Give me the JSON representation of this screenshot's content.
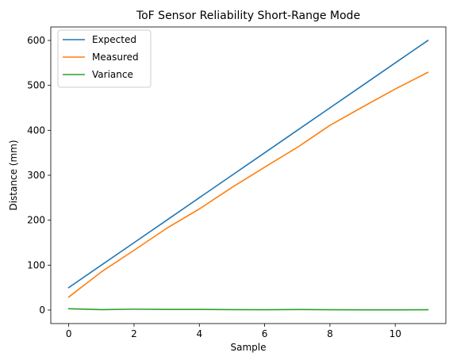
{
  "chart_data": {
    "type": "line",
    "title": "ToF Sensor Reliability Short-Range Mode",
    "xlabel": "Sample",
    "ylabel": "Distance (mm)",
    "x": [
      0,
      1,
      2,
      3,
      4,
      5,
      6,
      7,
      8,
      9,
      10,
      11
    ],
    "xlim": [
      -0.55,
      11.55
    ],
    "ylim": [
      -30,
      630
    ],
    "xticks": [
      0,
      2,
      4,
      6,
      8,
      10
    ],
    "yticks": [
      0,
      100,
      200,
      300,
      400,
      500,
      600
    ],
    "grid": false,
    "legend_position": "upper-left",
    "series": [
      {
        "name": "Expected",
        "color": "#1f77b4",
        "values": [
          50,
          100,
          150,
          200,
          250,
          300,
          350,
          400,
          450,
          500,
          550,
          600
        ]
      },
      {
        "name": "Measured",
        "color": "#ff7f0e",
        "values": [
          29,
          85,
          133,
          182,
          225,
          273,
          318,
          362,
          411,
          452,
          492,
          529
        ]
      },
      {
        "name": "Variance",
        "color": "#2ca02c",
        "values": [
          3,
          1,
          2,
          1.5,
          1.5,
          1,
          0.8,
          1.2,
          0.8,
          0.6,
          0.5,
          0.8
        ]
      }
    ]
  }
}
